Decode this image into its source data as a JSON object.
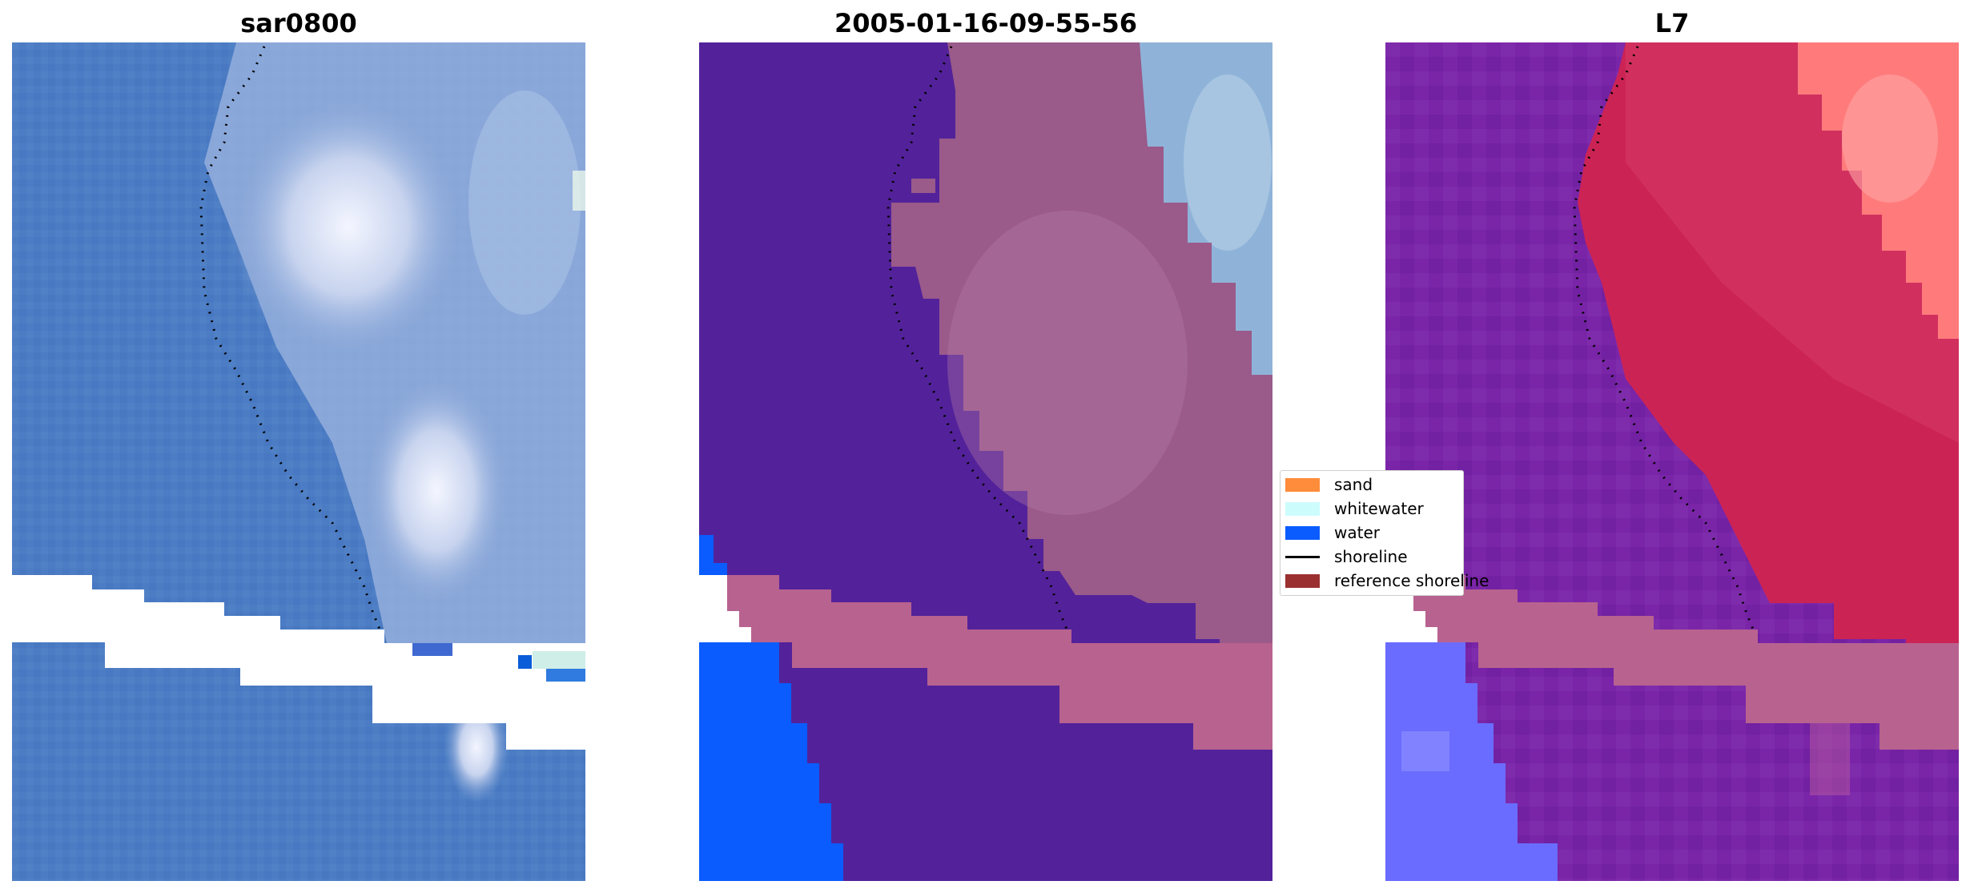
{
  "panels": [
    {
      "id": "sar",
      "title": "sar0800"
    },
    {
      "id": "date",
      "title": "2005-01-16-09-55-56"
    },
    {
      "id": "l7",
      "title": "L7"
    }
  ],
  "legend": [
    {
      "label": "sand",
      "color": "#ff8c3a",
      "kind": "patch"
    },
    {
      "label": "whitewater",
      "color": "#cdfcfc",
      "kind": "patch"
    },
    {
      "label": "water",
      "color": "#0a5cff",
      "kind": "patch"
    },
    {
      "label": "shoreline",
      "color": "#000000",
      "kind": "line"
    },
    {
      "label": "reference shoreline",
      "color": "#9b3030",
      "kind": "patch"
    }
  ],
  "colors": {
    "sea_blue": "#4b7cc4",
    "foam_white": "#e6eef5",
    "classified_purple": "#53229a",
    "sand_pink": "#b8628f",
    "water_blue": "#0a5cff",
    "l7_purple": "#7a25a8",
    "l7_red": "#cc2355",
    "l7_salmon": "#ff7b7b",
    "l7_blue": "#6a6cff",
    "no_data": "#ffffff"
  }
}
